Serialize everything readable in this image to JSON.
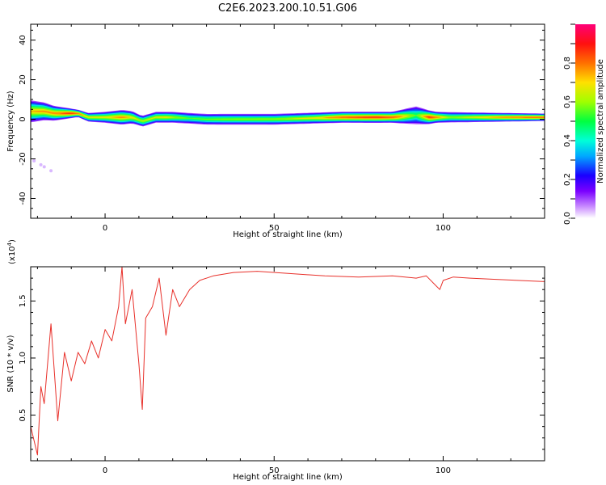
{
  "title": "C2E6.2023.200.10.51.G06",
  "chart_data": [
    {
      "type": "heatmap",
      "xlabel": "Height of straight line (km)",
      "ylabel": "Frequency (Hz)",
      "xlim": [
        -22,
        130
      ],
      "ylim": [
        -50,
        48
      ],
      "xticks": [
        0,
        50,
        100
      ],
      "yticks": [
        -40,
        -20,
        0,
        20,
        40
      ],
      "colorbar": {
        "label": "Normalized spectral amplitude",
        "range": [
          0.0,
          1.0
        ],
        "ticks": [
          "0.0",
          "0.2",
          "0.4",
          "0.6",
          "0.8"
        ]
      },
      "band_center_hz": [
        [
          -22,
          4
        ],
        [
          -18,
          4
        ],
        [
          -15,
          3
        ],
        [
          -13,
          3
        ],
        [
          -8,
          3
        ],
        [
          -5,
          1
        ],
        [
          0,
          1
        ],
        [
          4,
          1
        ],
        [
          8,
          1
        ],
        [
          11,
          -1
        ],
        [
          15,
          1
        ],
        [
          20,
          1
        ],
        [
          30,
          0
        ],
        [
          50,
          0
        ],
        [
          70,
          1
        ],
        [
          85,
          1
        ],
        [
          92,
          2
        ],
        [
          96,
          1
        ],
        [
          105,
          1
        ],
        [
          130,
          1
        ]
      ],
      "band_halfwidth_hz": [
        [
          -22,
          6
        ],
        [
          -15,
          4
        ],
        [
          -8,
          2
        ],
        [
          0,
          3
        ],
        [
          5,
          4
        ],
        [
          10,
          3
        ],
        [
          20,
          3
        ],
        [
          40,
          3
        ],
        [
          85,
          3
        ],
        [
          92,
          5
        ],
        [
          98,
          3
        ],
        [
          130,
          2
        ]
      ],
      "band_peak": [
        [
          -22,
          0.75
        ],
        [
          -15,
          0.8
        ],
        [
          -10,
          0.92
        ],
        [
          -5,
          0.7
        ],
        [
          0,
          0.7
        ],
        [
          5,
          0.8
        ],
        [
          10,
          0.65
        ],
        [
          18,
          0.7
        ],
        [
          25,
          0.55
        ],
        [
          35,
          0.6
        ],
        [
          50,
          0.62
        ],
        [
          62,
          0.7
        ],
        [
          70,
          0.85
        ],
        [
          80,
          0.9
        ],
        [
          86,
          0.85
        ],
        [
          92,
          0.55
        ],
        [
          96,
          0.9
        ],
        [
          102,
          0.62
        ],
        [
          110,
          0.7
        ],
        [
          118,
          0.8
        ],
        [
          125,
          0.85
        ],
        [
          130,
          0.85
        ]
      ],
      "scatter_points": [
        [
          -21,
          -21
        ],
        [
          -19,
          -23
        ],
        [
          -18,
          -24
        ],
        [
          -16,
          -26
        ]
      ]
    },
    {
      "type": "line",
      "xlabel": "Height of straight line (km)",
      "ylabel": "SNR (10 * v/v)",
      "yscale_label": "(x10",
      "yscale_exponent": "4",
      "xlim": [
        -22,
        130
      ],
      "ylim": [
        0.1,
        1.8
      ],
      "xticks": [
        0,
        50,
        100
      ],
      "yticks": [
        "0.5",
        "1.0",
        "1.5"
      ],
      "color": "#e8302a",
      "x": [
        -22,
        -20,
        -19,
        -18,
        -16,
        -14,
        -12,
        -10,
        -8,
        -6,
        -4,
        -2,
        0,
        2,
        4,
        5,
        6,
        8,
        10,
        11,
        12,
        14,
        16,
        18,
        20,
        22,
        25,
        28,
        32,
        38,
        45,
        55,
        65,
        75,
        85,
        92,
        95,
        98,
        99,
        100,
        103,
        108,
        115,
        122,
        130
      ],
      "values": [
        0.4,
        0.15,
        0.75,
        0.6,
        1.3,
        0.45,
        1.05,
        0.8,
        1.05,
        0.95,
        1.15,
        1.0,
        1.25,
        1.15,
        1.45,
        1.8,
        1.3,
        1.6,
        0.95,
        0.55,
        1.35,
        1.45,
        1.7,
        1.2,
        1.6,
        1.45,
        1.6,
        1.68,
        1.72,
        1.75,
        1.76,
        1.74,
        1.72,
        1.71,
        1.72,
        1.7,
        1.72,
        1.63,
        1.6,
        1.68,
        1.71,
        1.7,
        1.69,
        1.68,
        1.67
      ]
    }
  ]
}
